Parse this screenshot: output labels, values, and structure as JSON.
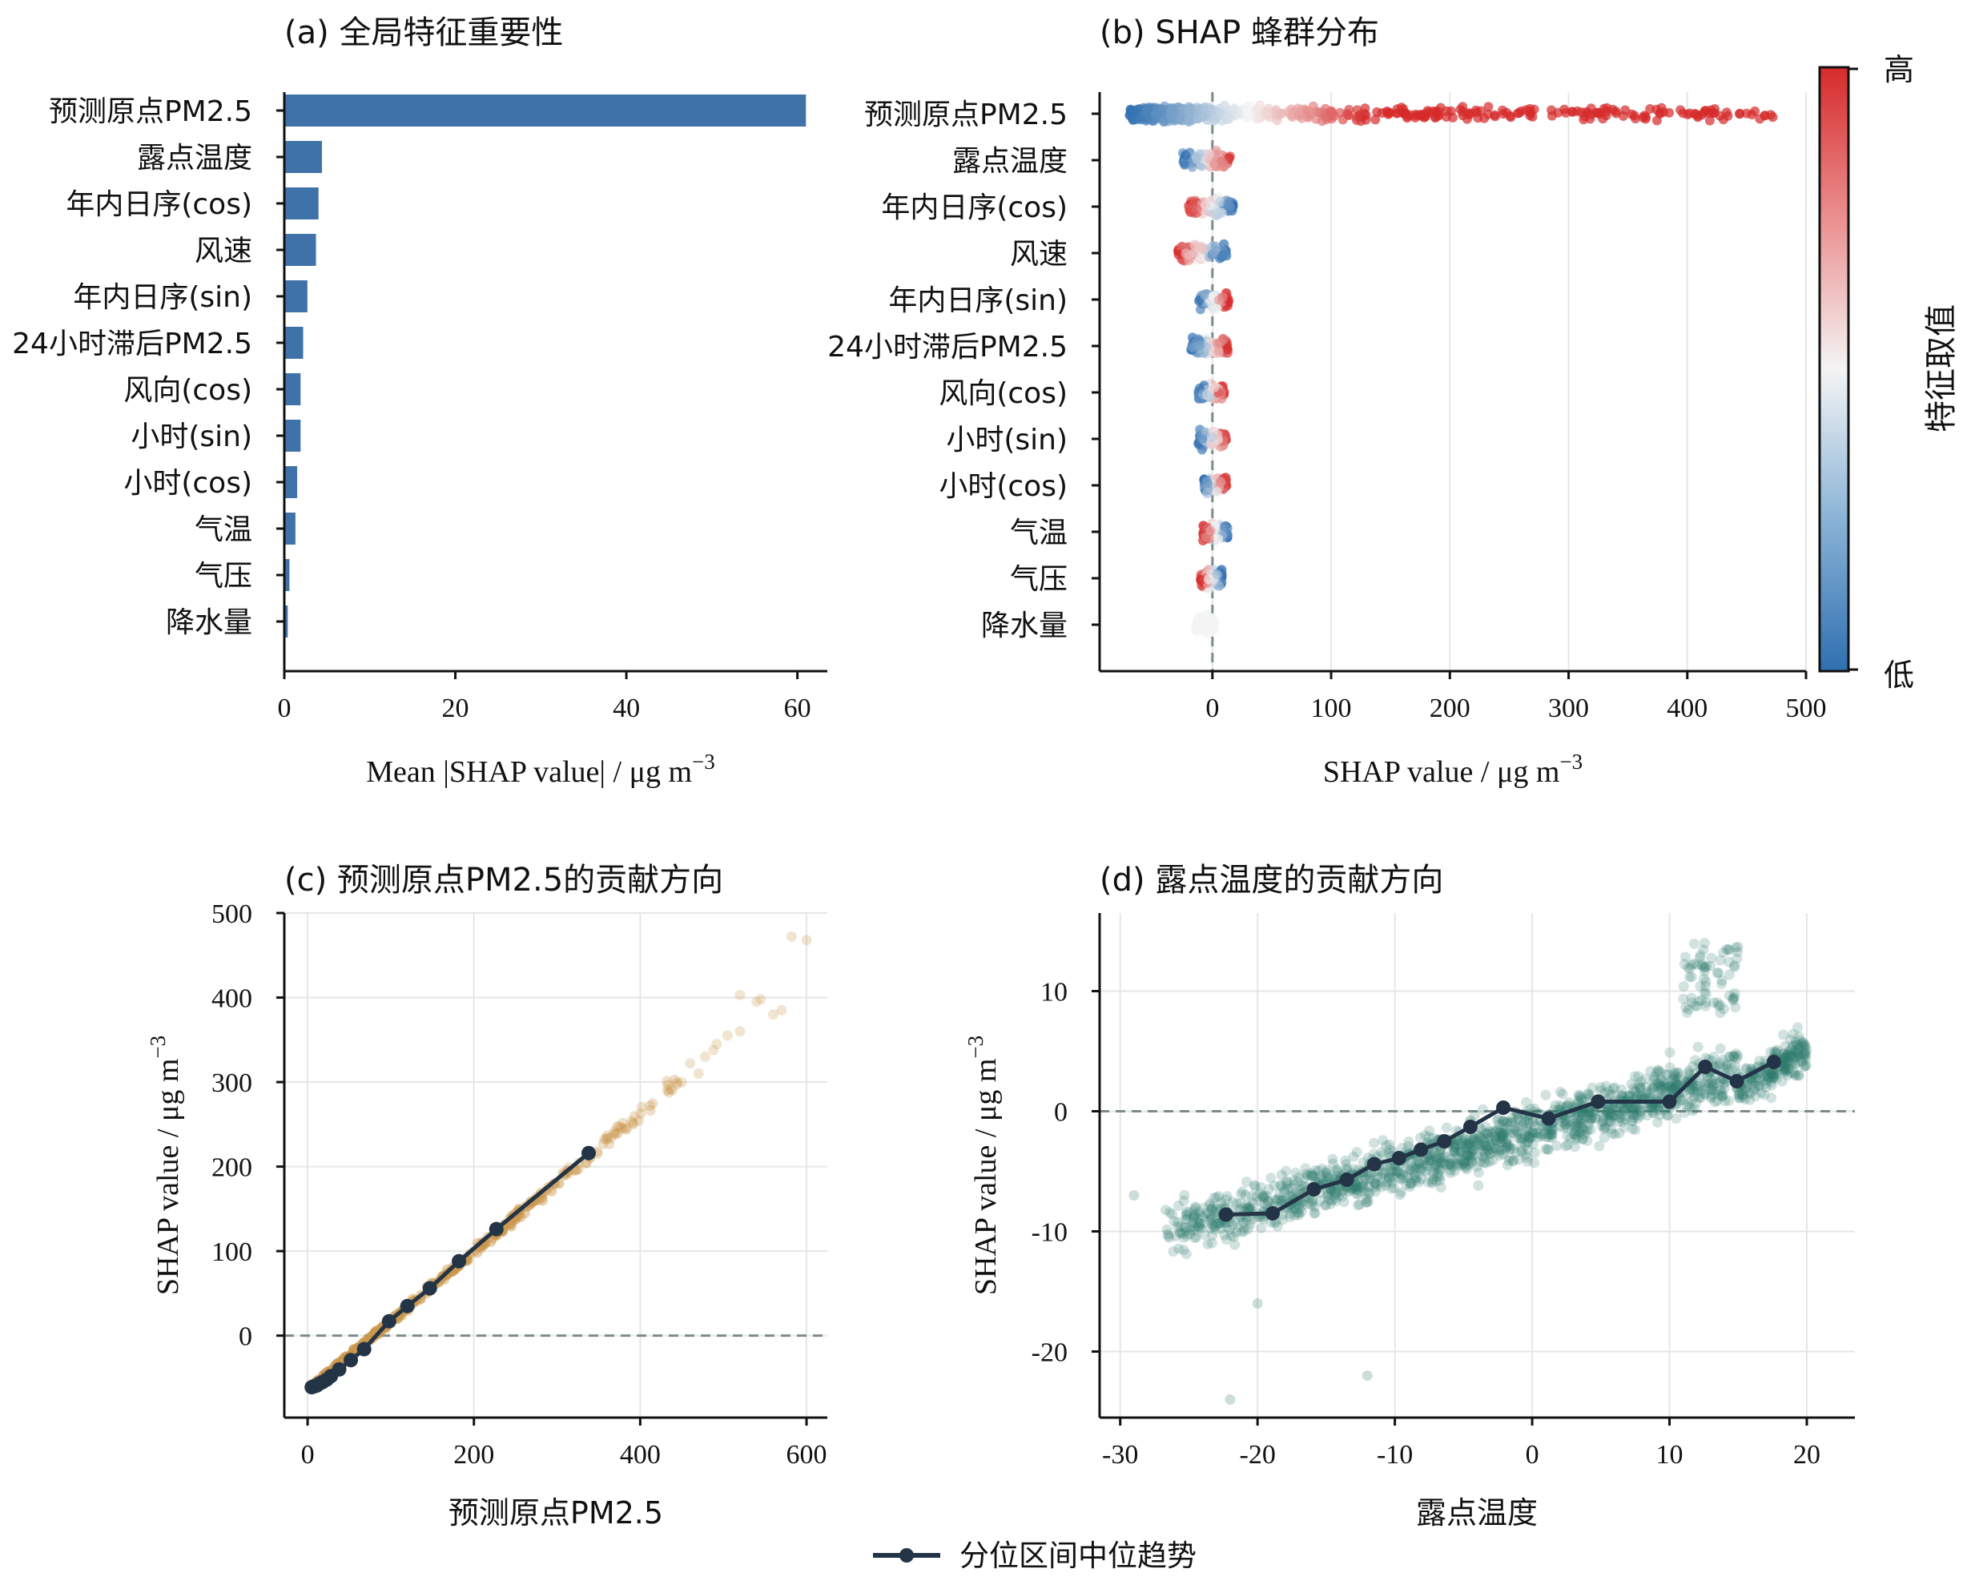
{
  "colors": {
    "bar": "#3f72a8",
    "cold": "#2f6fb0",
    "hot": "#d62b2b",
    "amber": "#c9974b",
    "teal": "#2f7d6e",
    "trend": "#243447",
    "zero": "#7d8b8a",
    "grid": "#e6e6e6",
    "axis": "#111111"
  },
  "legend": {
    "label": "分位区间中位趋势"
  },
  "chart_data": [
    {
      "id": "a",
      "type": "bar",
      "orientation": "horizontal",
      "title": "(a) 全局特征重要性",
      "xlabel": "Mean |SHAP value| / μg m",
      "xlabel_sup": "−3",
      "xlim": [
        0,
        63.5
      ],
      "xticks": [
        0,
        20,
        40,
        60
      ],
      "categories": [
        "预测原点PM2.5",
        "露点温度",
        "年内日序(cos)",
        "风速",
        "年内日序(sin)",
        "24小时滞后PM2.5",
        "风向(cos)",
        "小时(sin)",
        "小时(cos)",
        "气温",
        "气压",
        "降水量"
      ],
      "values": [
        61.0,
        4.4,
        4.0,
        3.7,
        2.7,
        2.2,
        1.9,
        1.9,
        1.5,
        1.3,
        0.6,
        0.4
      ],
      "grid": false
    },
    {
      "id": "b",
      "type": "scatter",
      "subtype": "beeswarm",
      "title": "(b) SHAP 蜂群分布",
      "xlabel": "SHAP value / μg m",
      "xlabel_sup": "−3",
      "xlim": [
        -95,
        500
      ],
      "xticks": [
        0,
        100,
        200,
        300,
        400,
        500
      ],
      "categories": [
        "预测原点PM2.5",
        "露点温度",
        "年内日序(cos)",
        "风速",
        "年内日序(sin)",
        "24小时滞后PM2.5",
        "风向(cos)",
        "小时(sin)",
        "小时(cos)",
        "气温",
        "气压",
        "降水量"
      ],
      "shap_ranges": [
        [
          -70,
          475
        ],
        [
          -25,
          15
        ],
        [
          -20,
          18
        ],
        [
          -30,
          12
        ],
        [
          -12,
          14
        ],
        [
          -18,
          13
        ],
        [
          -12,
          10
        ],
        [
          -12,
          12
        ],
        [
          -8,
          12
        ],
        [
          -8,
          13
        ],
        [
          -10,
          8
        ],
        [
          -15,
          2
        ]
      ],
      "colorbar": {
        "label": "特征取值",
        "high": "高",
        "low": "低"
      },
      "zero_line": 0,
      "grid": true
    },
    {
      "id": "c",
      "type": "scatter",
      "title": "(c) 预测原点PM2.5的贡献方向",
      "xlabel": "预测原点PM2.5",
      "ylabel": "SHAP value / μg m",
      "ylabel_sup": "−3",
      "xlim": [
        -28,
        625
      ],
      "ylim": [
        -97,
        500
      ],
      "xticks": [
        0,
        200,
        400,
        600
      ],
      "yticks": [
        0,
        100,
        200,
        300,
        400,
        500
      ],
      "points_extent": {
        "x": [
          5,
          600
        ],
        "y": [
          -62,
          470
        ]
      },
      "trend": {
        "name": "分位区间中位趋势",
        "x": [
          5,
          8,
          11,
          14,
          18,
          23,
          28,
          38,
          52,
          68,
          98,
          120,
          147,
          182,
          227,
          338
        ],
        "y": [
          -61,
          -60,
          -59,
          -57,
          -55,
          -52,
          -48,
          -40,
          -29,
          -16,
          17,
          35,
          56,
          88,
          126,
          216
        ]
      },
      "zero_line": 0,
      "grid": true
    },
    {
      "id": "d",
      "type": "scatter",
      "title": "(d) 露点温度的贡献方向",
      "xlabel": "露点温度",
      "ylabel": "SHAP value / μg m",
      "ylabel_sup": "−3",
      "xlim": [
        -31.5,
        23.5
      ],
      "ylim": [
        -25.5,
        16.5
      ],
      "xticks": [
        -30,
        -20,
        -10,
        0,
        10,
        20
      ],
      "yticks": [
        -20,
        -10,
        0,
        10
      ],
      "points_extent": {
        "x": [
          -29,
          20
        ],
        "y": [
          -24,
          14
        ]
      },
      "trend": {
        "name": "分位区间中位趋势",
        "x": [
          -22.3,
          -18.9,
          -15.9,
          -13.5,
          -11.5,
          -9.7,
          -8.1,
          -6.4,
          -4.5,
          -2.1,
          1.2,
          4.8,
          10.0,
          12.6,
          14.9,
          17.6
        ],
        "y": [
          -8.6,
          -8.5,
          -6.5,
          -5.7,
          -4.4,
          -3.9,
          -3.2,
          -2.5,
          -1.3,
          0.3,
          -0.6,
          0.8,
          0.8,
          3.7,
          2.5,
          4.1
        ]
      },
      "zero_line": 0,
      "grid": true
    }
  ]
}
